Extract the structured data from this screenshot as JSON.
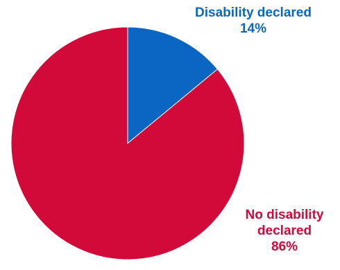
{
  "chart_data": {
    "type": "pie",
    "start_angle_deg": 0,
    "direction": "clockwise",
    "slices": [
      {
        "name_lines": [
          "Disability declared"
        ],
        "pct_label": "14%",
        "value": 14,
        "color": "#0a66c2"
      },
      {
        "name_lines": [
          "No disability",
          "declared"
        ],
        "pct_label": "86%",
        "value": 86,
        "color": "#d20a3a"
      }
    ],
    "legend": "none",
    "title": ""
  }
}
